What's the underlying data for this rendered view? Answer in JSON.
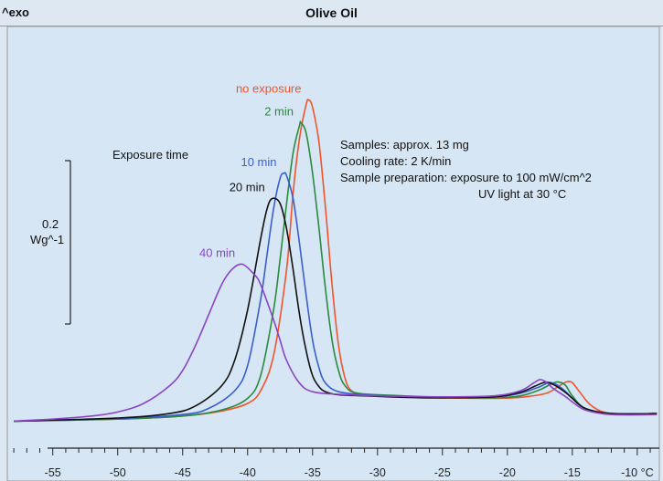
{
  "header": {
    "left_label": "^exo",
    "title": "Olive Oil"
  },
  "legend_title": "Exposure time",
  "scale_bar": {
    "value_label": "0.2",
    "unit_label": "Wg^-1"
  },
  "notes": [
    "Samples: approx. 13 mg",
    "Cooling rate: 2 K/min",
    "Sample preparation: exposure to 100 mW/cm^2",
    "UV light at 30 °C"
  ],
  "chart_data": {
    "type": "line",
    "title": "Olive Oil",
    "xlabel": "°C",
    "ylabel": "^exo",
    "x_ticks": [
      -55,
      -50,
      -45,
      -40,
      -35,
      -30,
      -25,
      -20,
      -15,
      -10
    ],
    "x_tick_labels": [
      "-55",
      "-50",
      "-45",
      "-40",
      "-35",
      "-30",
      "-25",
      "-20",
      "-15",
      "-10 °C"
    ],
    "xlim": [
      -58.5,
      -8.3
    ],
    "ylim": [
      -0.03,
      0.78
    ],
    "grid": false,
    "legend": "inline labels next to peaks",
    "series": [
      {
        "name": "no exposure",
        "color": "#f0542a",
        "peak_x": -35.3,
        "x": [
          -58,
          -50,
          -45,
          -42,
          -40,
          -39,
          -38,
          -37,
          -36.5,
          -36,
          -35.5,
          -35.3,
          -35,
          -34.5,
          -34,
          -33.5,
          -33,
          -32.5,
          -32,
          -31,
          -28,
          -25,
          -21,
          -19,
          -17,
          -16,
          -15.4,
          -15,
          -14.5,
          -13.5,
          -12,
          -8.5
        ],
        "y": [
          0.0,
          0.004,
          0.01,
          0.02,
          0.035,
          0.06,
          0.13,
          0.3,
          0.45,
          0.56,
          0.625,
          0.635,
          0.62,
          0.55,
          0.42,
          0.27,
          0.15,
          0.085,
          0.06,
          0.052,
          0.048,
          0.046,
          0.045,
          0.047,
          0.055,
          0.07,
          0.078,
          0.076,
          0.06,
          0.03,
          0.015,
          0.015
        ]
      },
      {
        "name": "2 min",
        "color": "#2b8a3e",
        "peak_x": -35.9,
        "x": [
          -58,
          -50,
          -45,
          -42,
          -40,
          -39,
          -38,
          -37.5,
          -37,
          -36.5,
          -36,
          -35.9,
          -35.5,
          -35,
          -34.5,
          -34,
          -33.5,
          -33,
          -32.5,
          -31.5,
          -28,
          -25,
          -21,
          -19,
          -17.5,
          -16.5,
          -16,
          -15.5,
          -15,
          -14,
          -12,
          -8.5
        ],
        "y": [
          0.0,
          0.004,
          0.01,
          0.022,
          0.045,
          0.09,
          0.22,
          0.32,
          0.43,
          0.53,
          0.585,
          0.59,
          0.57,
          0.49,
          0.38,
          0.26,
          0.16,
          0.1,
          0.07,
          0.055,
          0.05,
          0.047,
          0.046,
          0.05,
          0.062,
          0.075,
          0.077,
          0.07,
          0.05,
          0.025,
          0.014,
          0.014
        ]
      },
      {
        "name": "10 min",
        "color": "#3a5fcd",
        "peak_x": -37.2,
        "x": [
          -58,
          -50,
          -45,
          -43,
          -41,
          -40,
          -39,
          -38.5,
          -38,
          -37.5,
          -37.2,
          -37,
          -36.5,
          -36,
          -35.5,
          -35,
          -34.5,
          -34,
          -33,
          -31,
          -28,
          -25,
          -21,
          -19,
          -17.5,
          -16.8,
          -16.2,
          -15.5,
          -15,
          -14,
          -12,
          -8.5
        ],
        "y": [
          0.0,
          0.005,
          0.013,
          0.025,
          0.06,
          0.11,
          0.24,
          0.33,
          0.42,
          0.48,
          0.49,
          0.485,
          0.44,
          0.35,
          0.25,
          0.16,
          0.105,
          0.075,
          0.058,
          0.052,
          0.049,
          0.047,
          0.048,
          0.055,
          0.068,
          0.076,
          0.072,
          0.058,
          0.045,
          0.025,
          0.015,
          0.015
        ]
      },
      {
        "name": "20 min",
        "color": "#111111",
        "peak_x": -38.1,
        "x": [
          -58,
          -50,
          -46,
          -44,
          -42,
          -41,
          -40,
          -39,
          -38.5,
          -38.1,
          -37.5,
          -37,
          -36.5,
          -36,
          -35.5,
          -35,
          -34.5,
          -34,
          -33,
          -31,
          -28,
          -25,
          -21,
          -19,
          -17.8,
          -17,
          -16.3,
          -15.5,
          -15,
          -14,
          -12,
          -8.5
        ],
        "y": [
          0.0,
          0.006,
          0.015,
          0.03,
          0.07,
          0.12,
          0.22,
          0.36,
          0.42,
          0.44,
          0.43,
          0.38,
          0.3,
          0.21,
          0.14,
          0.09,
          0.068,
          0.058,
          0.052,
          0.05,
          0.047,
          0.046,
          0.048,
          0.057,
          0.07,
          0.077,
          0.07,
          0.056,
          0.045,
          0.025,
          0.015,
          0.015
        ]
      },
      {
        "name": "40 min",
        "color": "#8b44c4",
        "peak_x": -40.4,
        "x": [
          -58,
          -55,
          -52,
          -50,
          -48,
          -46,
          -45,
          -44,
          -43,
          -42,
          -41.2,
          -40.4,
          -39.5,
          -39,
          -38,
          -37.5,
          -37,
          -36,
          -35,
          -33,
          -30,
          -25,
          -21,
          -19,
          -18,
          -17.5,
          -17,
          -16.5,
          -15.5,
          -15,
          -14,
          -12,
          -8.5
        ],
        "y": [
          0.0,
          0.004,
          0.01,
          0.018,
          0.035,
          0.07,
          0.1,
          0.15,
          0.21,
          0.27,
          0.3,
          0.31,
          0.29,
          0.27,
          0.2,
          0.16,
          0.12,
          0.075,
          0.058,
          0.053,
          0.05,
          0.048,
          0.05,
          0.06,
          0.075,
          0.082,
          0.077,
          0.065,
          0.048,
          0.038,
          0.022,
          0.013,
          0.013
        ]
      }
    ]
  }
}
